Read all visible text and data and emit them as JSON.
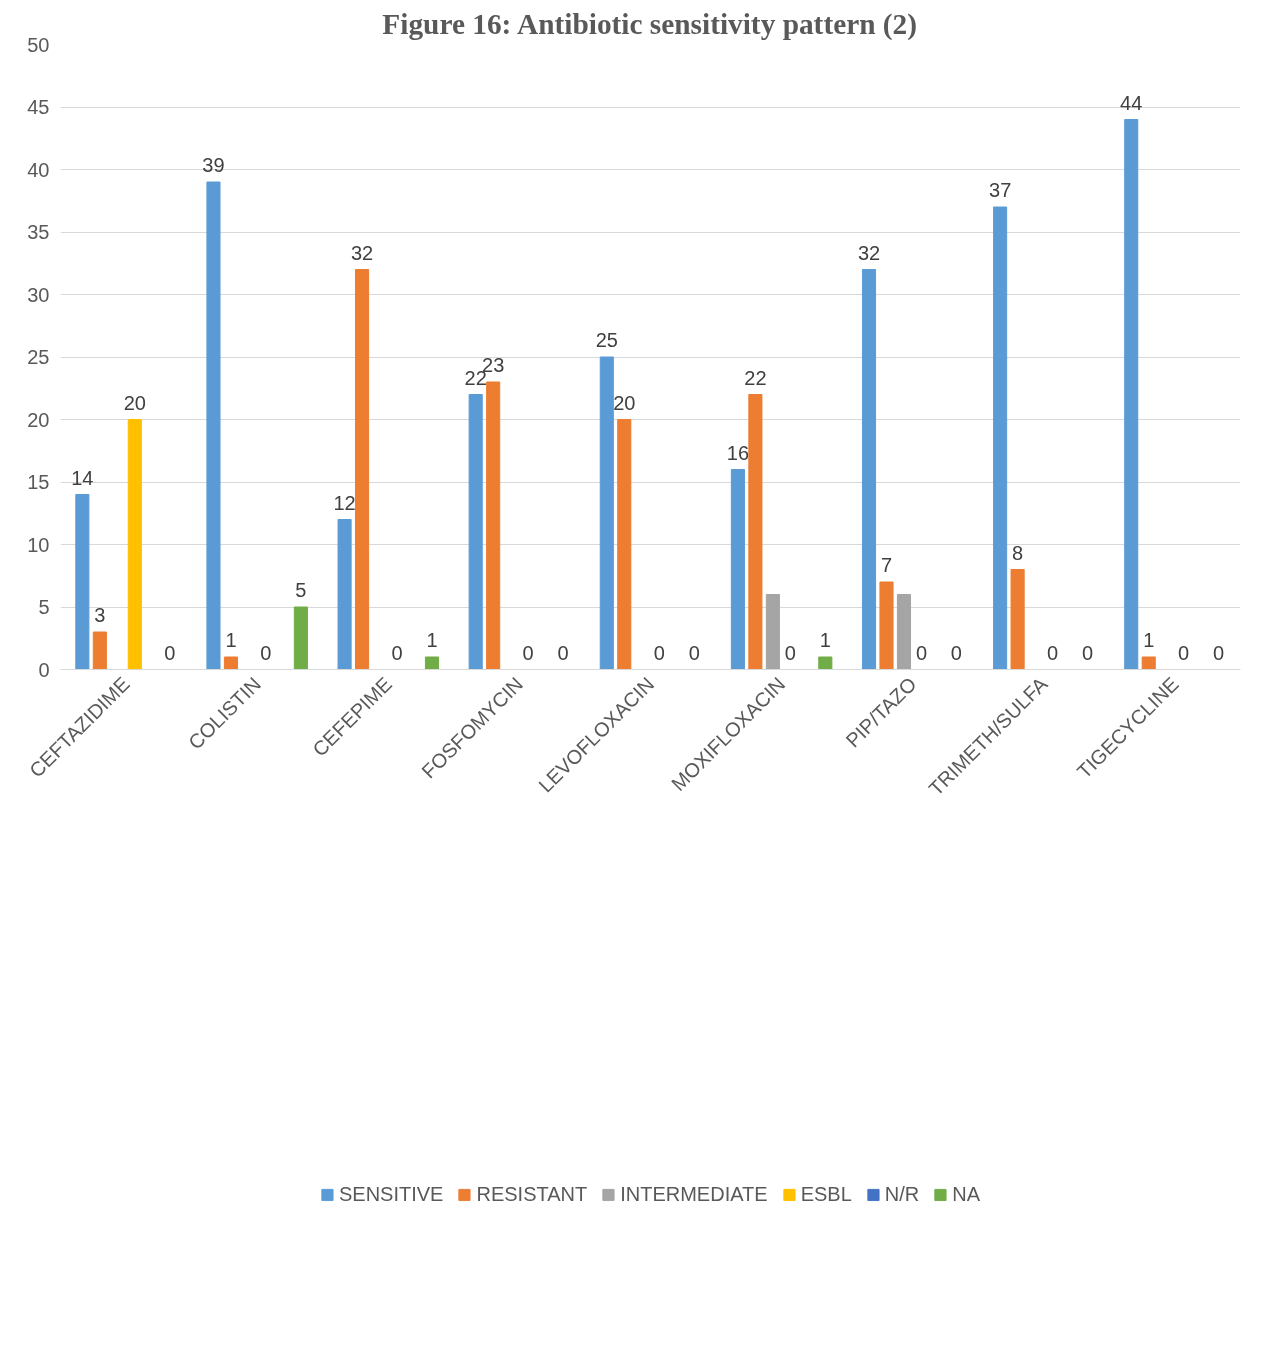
{
  "chart_data": {
    "type": "bar",
    "title": "Figure 16: Antibiotic sensitivity pattern (2)",
    "categories": [
      "CEFTAZIDIME",
      "COLISTIN",
      "CEFEPIME",
      "FOSFOMYCIN",
      "LEVOFLOXACIN",
      "MOXIFLOXACIN",
      "PIP/TAZO",
      "TRIMETH/SULFA",
      "TIGECYCLINE"
    ],
    "series": [
      {
        "name": "SENSITIVE",
        "color": "#5b9bd5",
        "values": [
          14,
          39,
          12,
          22,
          25,
          16,
          32,
          37,
          44
        ],
        "value_labels": [
          "14",
          "39",
          "12",
          "22",
          "25",
          "16",
          "32",
          "37",
          "44"
        ]
      },
      {
        "name": "RESISTANT",
        "color": "#ed7d31",
        "values": [
          3,
          1,
          32,
          23,
          20,
          22,
          7,
          8,
          1
        ],
        "value_labels": [
          "3",
          "1",
          "32",
          "23",
          "20",
          "22",
          "7",
          "8",
          "1"
        ]
      },
      {
        "name": "INTERMEDIATE",
        "color": "#a5a5a5",
        "values": [
          null,
          null,
          null,
          null,
          null,
          6,
          6,
          null,
          null
        ],
        "value_labels": [
          null,
          null,
          null,
          null,
          null,
          null,
          null,
          null,
          null
        ]
      },
      {
        "name": "ESBL",
        "color": "#ffc000",
        "values": [
          20,
          0,
          0,
          0,
          0,
          0,
          0,
          0,
          0
        ],
        "value_labels": [
          "20",
          "0",
          "0",
          "0",
          "0",
          "0",
          "0",
          "0",
          "0"
        ]
      },
      {
        "name": "N/R",
        "color": "#4472c4",
        "values": [
          null,
          null,
          null,
          null,
          null,
          null,
          null,
          null,
          null
        ],
        "value_labels": [
          null,
          null,
          null,
          null,
          null,
          null,
          null,
          null,
          null
        ]
      },
      {
        "name": "NA",
        "color": "#70ad47",
        "values": [
          0,
          5,
          1,
          0,
          0,
          1,
          0,
          0,
          0
        ],
        "value_labels": [
          "0",
          "5",
          "1",
          "0",
          "0",
          "1",
          "0",
          "0",
          "0"
        ]
      }
    ],
    "ylim": [
      0,
      50
    ],
    "yticks": [
      0,
      5,
      10,
      15,
      20,
      25,
      30,
      35,
      40,
      45,
      50
    ],
    "grid": "y",
    "legend": "bottom"
  }
}
